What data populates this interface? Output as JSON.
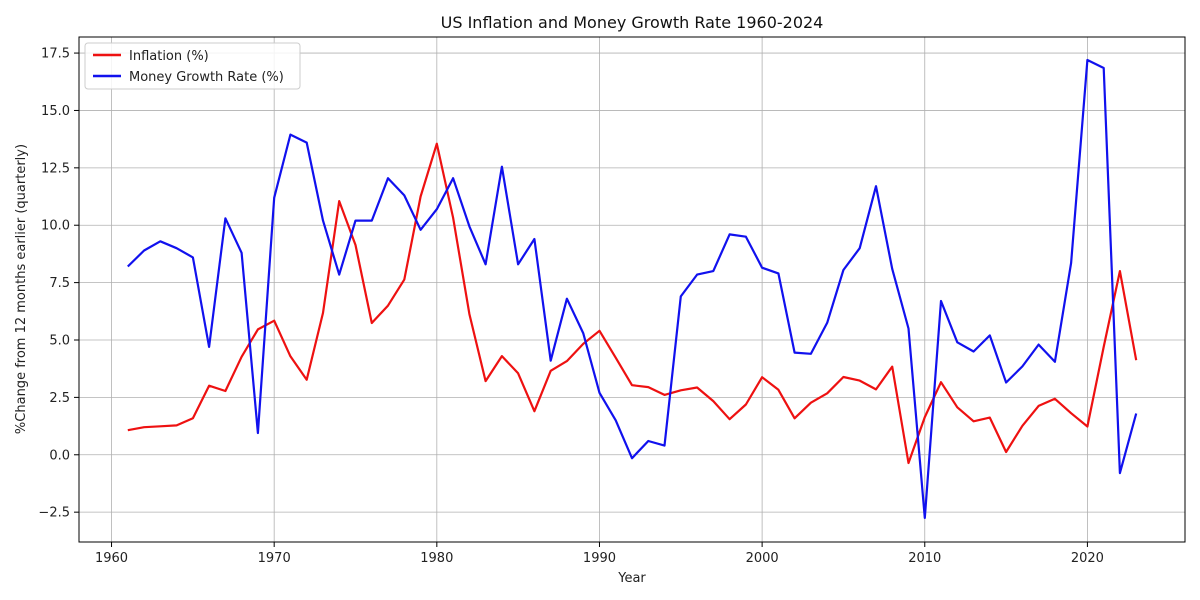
{
  "chart_data": {
    "type": "line",
    "title": "US Inflation and Money Growth Rate 1960-2024",
    "xlabel": "Year",
    "ylabel": "%Change from 12 months earlier (quarterly)",
    "xlim": [
      1958,
      2026
    ],
    "ylim": [
      -3.8,
      18.2
    ],
    "x_ticks": [
      1960,
      1970,
      1980,
      1990,
      2000,
      2010,
      2020
    ],
    "y_ticks": [
      -2.5,
      0.0,
      2.5,
      5.0,
      7.5,
      10.0,
      12.5,
      15.0,
      17.5
    ],
    "y_tick_labels": [
      "−2.5",
      "0.0",
      "2.5",
      "5.0",
      "7.5",
      "10.0",
      "12.5",
      "15.0",
      "17.5"
    ],
    "grid": true,
    "legend_position": "top-left",
    "x": [
      1961,
      1962,
      1963,
      1964,
      1965,
      1966,
      1967,
      1968,
      1969,
      1970,
      1971,
      1972,
      1973,
      1974,
      1975,
      1976,
      1977,
      1978,
      1979,
      1980,
      1981,
      1982,
      1983,
      1984,
      1985,
      1986,
      1987,
      1988,
      1989,
      1990,
      1991,
      1992,
      1993,
      1994,
      1995,
      1996,
      1997,
      1998,
      1999,
      2000,
      2001,
      2002,
      2003,
      2004,
      2005,
      2006,
      2007,
      2008,
      2009,
      2010,
      2011,
      2012,
      2013,
      2014,
      2015,
      2016,
      2017,
      2018,
      2019,
      2020,
      2021,
      2022,
      2023
    ],
    "series": [
      {
        "name": "Inflation (%)",
        "color": "#ee1111",
        "values": [
          1.07,
          1.2,
          1.24,
          1.28,
          1.59,
          3.01,
          2.78,
          4.27,
          5.46,
          5.84,
          4.29,
          3.27,
          6.18,
          11.05,
          9.14,
          5.74,
          6.5,
          7.63,
          11.25,
          13.55,
          10.33,
          6.13,
          3.21,
          4.3,
          3.55,
          1.9,
          3.66,
          4.08,
          4.83,
          5.4,
          4.23,
          3.03,
          2.95,
          2.61,
          2.81,
          2.93,
          2.34,
          1.55,
          2.19,
          3.38,
          2.83,
          1.59,
          2.27,
          2.68,
          3.39,
          3.23,
          2.85,
          3.84,
          -0.36,
          1.64,
          3.16,
          2.07,
          1.46,
          1.62,
          0.12,
          1.26,
          2.13,
          2.44,
          1.81,
          1.23,
          4.7,
          8.0,
          4.12
        ]
      },
      {
        "name": "Money Growth Rate (%)",
        "color": "#1111ee",
        "values": [
          8.2,
          8.9,
          9.3,
          9.0,
          8.6,
          4.7,
          10.3,
          8.8,
          0.95,
          11.2,
          13.95,
          13.6,
          10.2,
          7.85,
          10.2,
          10.2,
          12.05,
          11.3,
          9.8,
          10.7,
          12.05,
          9.95,
          8.3,
          12.55,
          8.3,
          9.4,
          4.1,
          6.8,
          5.3,
          2.7,
          1.5,
          -0.15,
          0.6,
          0.4,
          6.9,
          7.85,
          8.0,
          9.6,
          9.5,
          8.15,
          7.9,
          4.45,
          4.4,
          5.75,
          8.05,
          9.0,
          11.7,
          8.1,
          5.5,
          -2.75,
          6.7,
          4.9,
          4.5,
          5.2,
          3.15,
          3.85,
          4.8,
          4.05,
          8.35,
          17.2,
          16.85,
          -0.8,
          1.8
        ]
      }
    ]
  }
}
